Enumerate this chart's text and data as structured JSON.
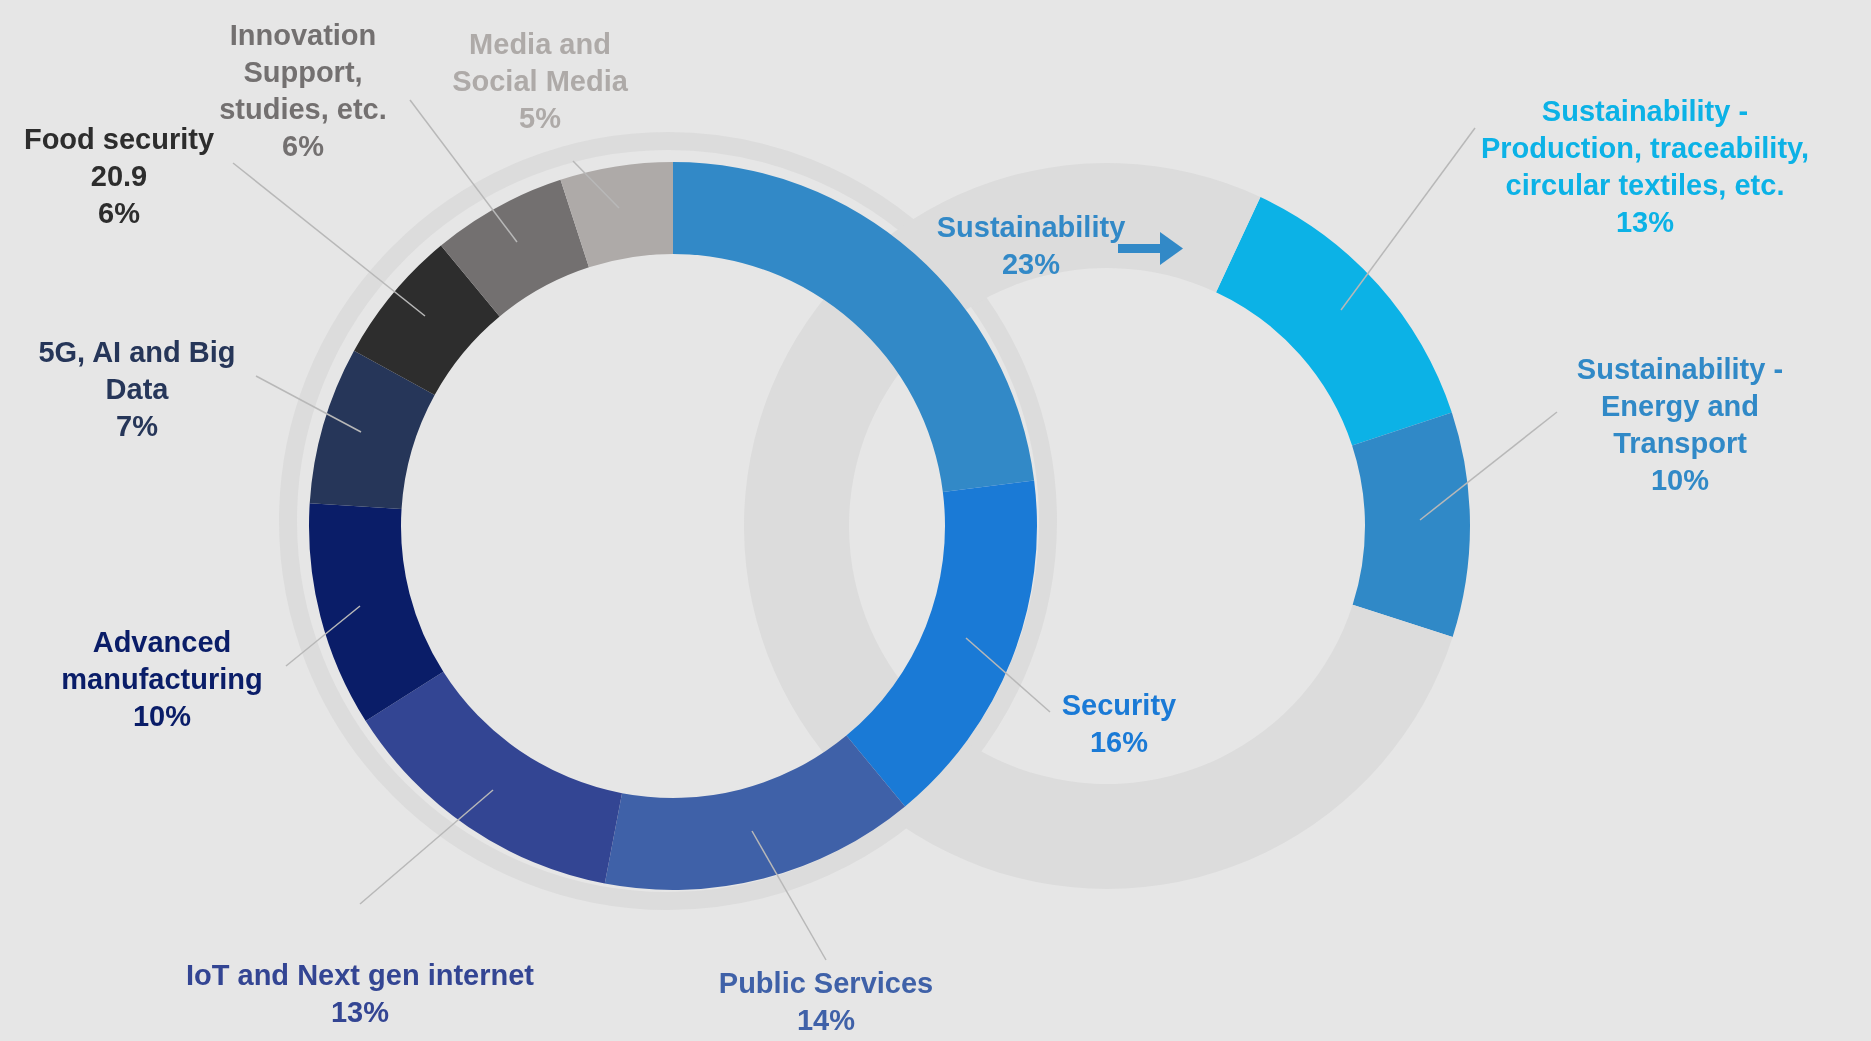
{
  "chart_data": [
    {
      "type": "donut",
      "categories": [
        "Sustainability",
        "Security",
        "Public Services",
        "IoT and Next gen internet",
        "Advanced manufacturing",
        "5G, AI and Big Data",
        "Food security 20.9",
        "Innovation Support, studies, etc.",
        "Media and Social Media"
      ],
      "values": [
        23,
        16,
        14,
        13,
        10,
        7,
        6,
        6,
        5
      ],
      "value_labels": [
        "23%",
        "16%",
        "14%",
        "13%",
        "10%",
        "7%",
        "6%",
        "6%",
        "5%"
      ],
      "colors": [
        "#3289c7",
        "#1a7ad6",
        "#3f61a8",
        "#334593",
        "#0a1d68",
        "#263659",
        "#2d2d2d",
        "#737070",
        "#aeaaa8"
      ]
    },
    {
      "type": "donut",
      "categories": [
        "Sustainability - Production, traceability, circular textiles, etc.",
        "Sustainability - Energy and Transport",
        null
      ],
      "values": [
        13,
        10,
        77
      ],
      "value_labels": [
        "13%",
        "10%",
        null
      ],
      "colors": [
        "#0cb2e6",
        "#3089c7",
        "#dcdcdc"
      ]
    }
  ]
}
